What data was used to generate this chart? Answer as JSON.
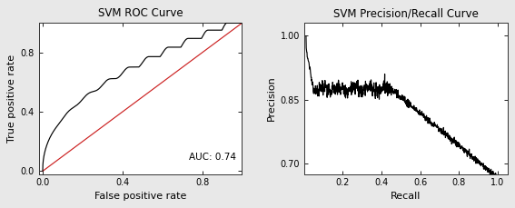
{
  "roc_title": "SVM ROC Curve",
  "roc_xlabel": "False positive rate",
  "roc_ylabel": "True positive rate",
  "roc_auc_text": "AUC: 0.74",
  "roc_xlim": [
    -0.02,
    1.0
  ],
  "roc_ylim": [
    -0.02,
    1.0
  ],
  "roc_xticks": [
    0.0,
    0.4,
    0.8
  ],
  "roc_yticks": [
    0.0,
    0.4,
    0.8
  ],
  "pr_title": "SVM Precision/Recall Curve",
  "pr_xlabel": "Recall",
  "pr_ylabel": "Precision",
  "pr_xlim": [
    0.0,
    1.05
  ],
  "pr_ylim": [
    0.675,
    1.03
  ],
  "pr_xticks": [
    0.2,
    0.4,
    0.6,
    0.8,
    1.0
  ],
  "pr_yticks": [
    0.7,
    0.85,
    1.0
  ],
  "background_color": "#e8e8e8",
  "plot_bg_color": "#ffffff",
  "line_color": "#000000",
  "diagonal_color": "#cc2222",
  "text_color": "#000000",
  "border_color": "#888888",
  "font_family": "DejaVu Sans"
}
